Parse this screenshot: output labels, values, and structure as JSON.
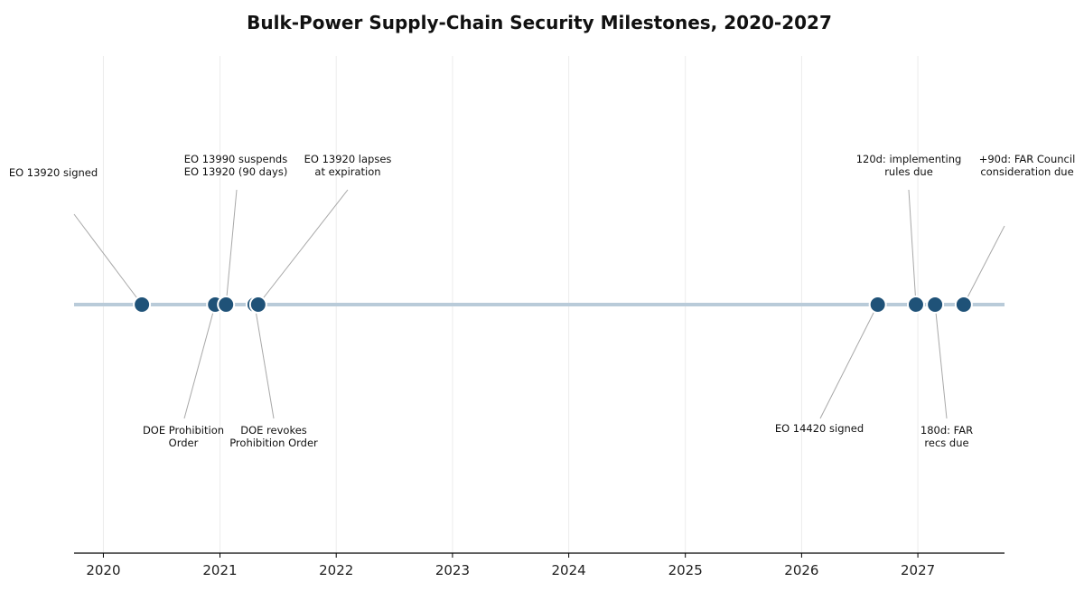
{
  "chart_data": {
    "type": "timeline",
    "title": "Bulk-Power Supply-Chain Security Milestones, 2020-2027",
    "xlim": [
      "2019-10-01",
      "2027-09-30"
    ],
    "x_ticks": [
      "2020",
      "2021",
      "2022",
      "2023",
      "2024",
      "2025",
      "2026",
      "2027"
    ],
    "grid": "vertical",
    "colors": {
      "line": "#b9cbd9",
      "marker": "#1f5278",
      "leader": "#a8a8a8"
    },
    "events": [
      {
        "date": "2020-05-01",
        "label": [
          "EO 13920 signed"
        ],
        "side": "above"
      },
      {
        "date": "2020-12-17",
        "label": [
          "DOE Prohibition",
          "Order"
        ],
        "side": "below"
      },
      {
        "date": "2021-01-20",
        "label": [
          "EO 13990 suspends",
          "EO 13920 (90 days)"
        ],
        "side": "above"
      },
      {
        "date": "2021-04-20",
        "label": [
          "DOE revokes",
          "Prohibition Order"
        ],
        "side": "below"
      },
      {
        "date": "2021-05-01",
        "label": [
          "EO 13920 lapses",
          "at expiration"
        ],
        "side": "above"
      },
      {
        "date": "2026-08-28",
        "label": [
          "EO 14420 signed"
        ],
        "side": "below"
      },
      {
        "date": "2026-12-26",
        "label": [
          "120d: implementing",
          "rules due"
        ],
        "side": "above"
      },
      {
        "date": "2027-02-24",
        "label": [
          "180d: FAR",
          "recs due"
        ],
        "side": "below"
      },
      {
        "date": "2027-05-25",
        "label": [
          "+90d: FAR Council",
          "consideration due"
        ],
        "side": "above"
      }
    ]
  }
}
